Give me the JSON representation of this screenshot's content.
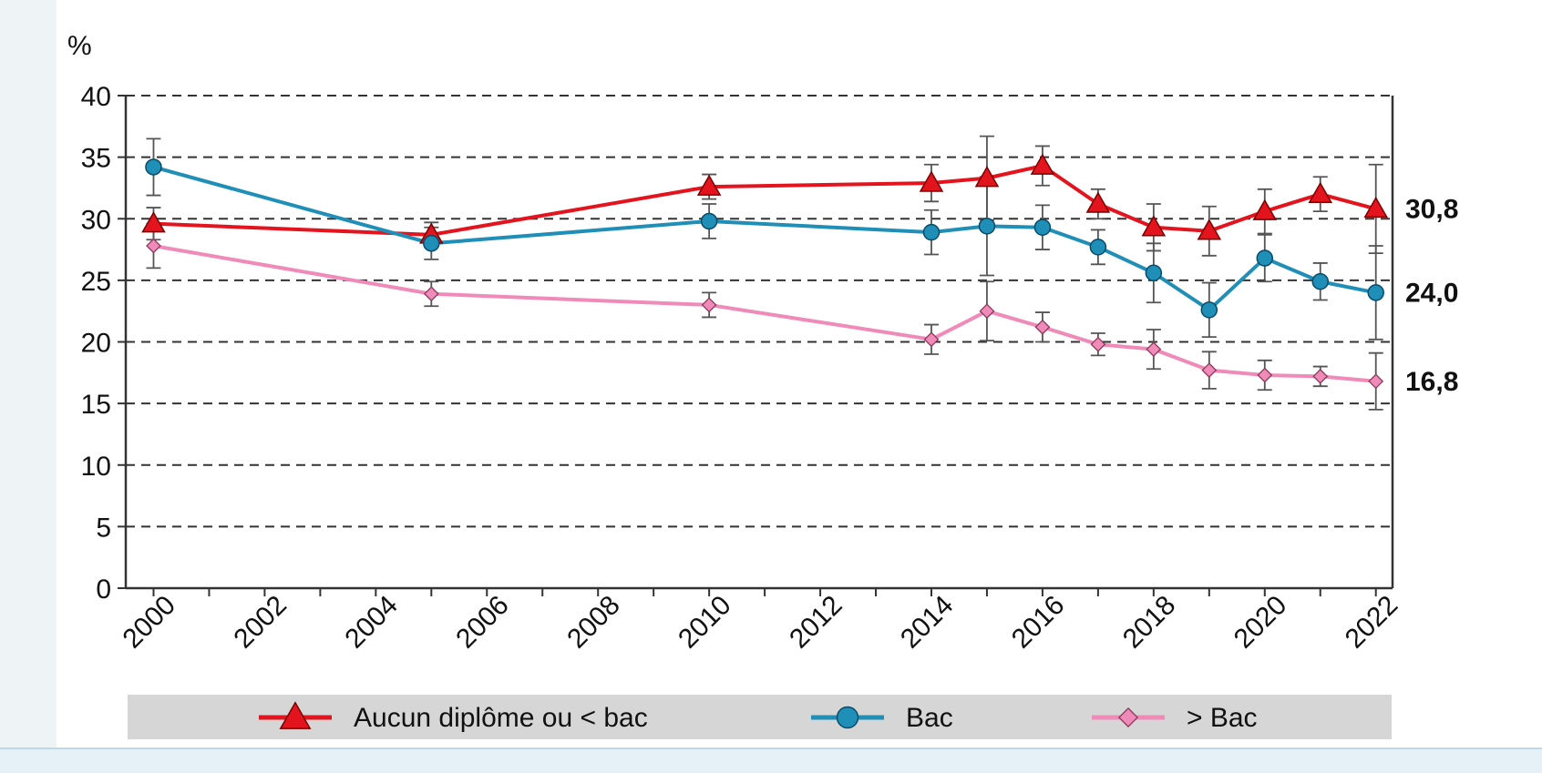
{
  "chart_data": {
    "type": "line",
    "ylabel": "%",
    "ylim": [
      0,
      40
    ],
    "yticks": [
      0,
      5,
      10,
      15,
      20,
      25,
      30,
      35,
      40
    ],
    "xlim": [
      1999.5,
      2022.3
    ],
    "xticks": [
      2000,
      2002,
      2004,
      2006,
      2008,
      2010,
      2012,
      2014,
      2016,
      2018,
      2020,
      2022
    ],
    "grid": "horizontal dashed",
    "legend_position": "bottom",
    "series": [
      {
        "name": "Aucun diplôme ou < bac",
        "color": "#e3141e",
        "marker": "triangle",
        "end_label": "30,8",
        "points": [
          {
            "x": 2000,
            "y": 29.6,
            "err": 1.3
          },
          {
            "x": 2005,
            "y": 28.7,
            "err": 1.0
          },
          {
            "x": 2010,
            "y": 32.6,
            "err": 1.0
          },
          {
            "x": 2014,
            "y": 32.9,
            "err": 1.5
          },
          {
            "x": 2015,
            "y": 33.3,
            "err": 3.4
          },
          {
            "x": 2016,
            "y": 34.3,
            "err": 1.6
          },
          {
            "x": 2017,
            "y": 31.2,
            "err": 1.2
          },
          {
            "x": 2018,
            "y": 29.3,
            "err": 1.9
          },
          {
            "x": 2019,
            "y": 29.0,
            "err": 2.0
          },
          {
            "x": 2020,
            "y": 30.6,
            "err": 1.8
          },
          {
            "x": 2021,
            "y": 32.0,
            "err": 1.4
          },
          {
            "x": 2022,
            "y": 30.8,
            "err": 3.6
          }
        ]
      },
      {
        "name": "Bac",
        "color": "#1f8fb8",
        "marker": "circle",
        "end_label": "24,0",
        "points": [
          {
            "x": 2000,
            "y": 34.2,
            "err": 2.3
          },
          {
            "x": 2005,
            "y": 28.0,
            "err": 1.3
          },
          {
            "x": 2010,
            "y": 29.8,
            "err": 1.4
          },
          {
            "x": 2014,
            "y": 28.9,
            "err": 1.8
          },
          {
            "x": 2015,
            "y": 29.4,
            "err": 4.0
          },
          {
            "x": 2016,
            "y": 29.3,
            "err": 1.8
          },
          {
            "x": 2017,
            "y": 27.7,
            "err": 1.4
          },
          {
            "x": 2018,
            "y": 25.6,
            "err": 2.4
          },
          {
            "x": 2019,
            "y": 22.6,
            "err": 2.2
          },
          {
            "x": 2020,
            "y": 26.8,
            "err": 1.9
          },
          {
            "x": 2021,
            "y": 24.9,
            "err": 1.5
          },
          {
            "x": 2022,
            "y": 24.0,
            "err": 3.8
          }
        ]
      },
      {
        "name": "> Bac",
        "color": "#f08ab8",
        "marker": "diamond",
        "end_label": "16,8",
        "points": [
          {
            "x": 2000,
            "y": 27.8,
            "err": 1.8
          },
          {
            "x": 2005,
            "y": 23.9,
            "err": 1.0
          },
          {
            "x": 2010,
            "y": 23.0,
            "err": 1.0
          },
          {
            "x": 2014,
            "y": 20.2,
            "err": 1.2
          },
          {
            "x": 2015,
            "y": 22.5,
            "err": 2.4
          },
          {
            "x": 2016,
            "y": 21.2,
            "err": 1.2
          },
          {
            "x": 2017,
            "y": 19.8,
            "err": 0.9
          },
          {
            "x": 2018,
            "y": 19.4,
            "err": 1.6
          },
          {
            "x": 2019,
            "y": 17.7,
            "err": 1.5
          },
          {
            "x": 2020,
            "y": 17.3,
            "err": 1.2
          },
          {
            "x": 2021,
            "y": 17.2,
            "err": 0.8
          },
          {
            "x": 2022,
            "y": 16.8,
            "err": 2.3
          }
        ]
      }
    ]
  }
}
